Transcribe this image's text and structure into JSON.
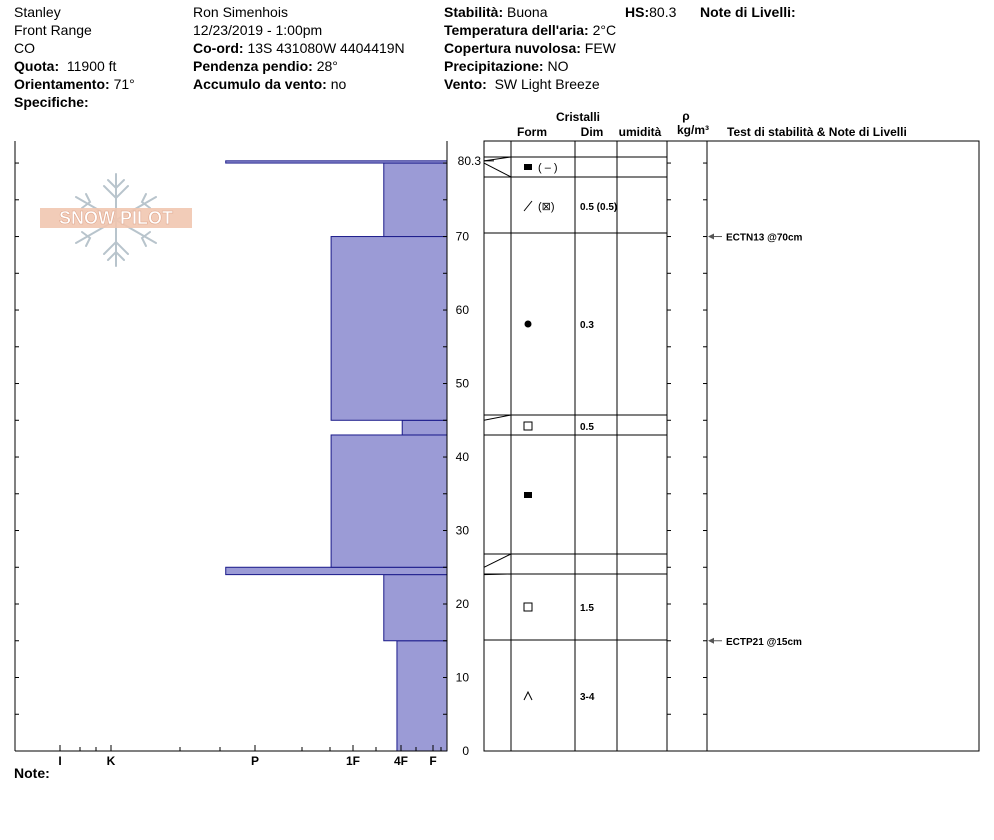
{
  "header": {
    "col1": {
      "location": "Stanley",
      "range": "Front Range",
      "state": "CO",
      "elevation_label": "Quota:",
      "elevation_value": "11900 ft",
      "aspect_label": "Orientamento:",
      "aspect_value": "71°",
      "specifics_label": "Specifiche:"
    },
    "col2": {
      "observer": "Ron Simenhois",
      "datetime": "12/23/2019 - 1:00pm",
      "coord_label": "Co-ord:",
      "coord_value": "13S 431080W 4404419N",
      "slope_label": "Pendenza pendio:",
      "slope_value": "28°",
      "wind_loading_label": "Accumulo da vento:",
      "wind_loading_value": "no"
    },
    "col3": {
      "stability_label": "Stabilità:",
      "stability_value": "Buona",
      "air_temp_label": "Temperatura dell'aria:",
      "air_temp_value": "2°C",
      "cloud_label": "Copertura nuvolosa:",
      "cloud_value": "FEW",
      "precip_label": "Precipitazione:",
      "precip_value": "NO",
      "wind_label": "Vento:",
      "wind_value": "SW Light Breeze"
    },
    "hs_label": "HS:",
    "hs_value": "80.3",
    "layer_notes_label": "Note di Livelli:"
  },
  "logo_text": "SNOW PILOT",
  "notes_label": "Note:",
  "table_headers": {
    "crystals": "Cristalli",
    "form": "Form",
    "size": "Dim",
    "moisture": "umidità",
    "density_symbol": "ρ",
    "density_unit": "kg/m³",
    "tests": "Test di stabilità & Note di Livelli"
  },
  "chart_data": {
    "type": "bar",
    "y_label_top": "80.3",
    "ylim": [
      0,
      83
    ],
    "yticks": [
      0,
      10,
      20,
      30,
      40,
      50,
      60,
      70
    ],
    "hardness_scale": [
      "I",
      "K",
      "P",
      "1F",
      "4F",
      "F"
    ],
    "hardness_tick_values": [
      1,
      2,
      4,
      6,
      7,
      8
    ],
    "layers": [
      {
        "bottom": 0,
        "top": 15,
        "hardness": 7.75
      },
      {
        "bottom": 15,
        "top": 24,
        "hardness": 7
      },
      {
        "bottom": 24,
        "top": 25,
        "hardness": 4
      },
      {
        "bottom": 25,
        "top": 43,
        "hardness": 6
      },
      {
        "bottom": 43,
        "top": 45,
        "hardness": 8
      },
      {
        "bottom": 45,
        "top": 70,
        "hardness": 6
      },
      {
        "bottom": 70,
        "top": 80,
        "hardness": 7
      },
      {
        "bottom": 80,
        "top": 80.3,
        "hardness": 4
      }
    ],
    "crystal_layers": [
      {
        "bottom": 0,
        "top": 15,
        "form": "depth-hoar-icon",
        "form_text": "",
        "size": "3-4"
      },
      {
        "bottom": 15,
        "top": 24,
        "form": "faceted-crystal-icon",
        "form_text": "",
        "size": "1.5"
      },
      {
        "bottom": 24,
        "top": 25,
        "form": "",
        "form_text": "",
        "size": ""
      },
      {
        "bottom": 25,
        "top": 43,
        "form": "melt-forms-icon",
        "form_text": "",
        "size": ""
      },
      {
        "bottom": 43,
        "top": 45,
        "form": "faceted-crystal-icon",
        "form_text": "",
        "size": "0.5"
      },
      {
        "bottom": 45,
        "top": 70,
        "form": "rounded-grain-icon",
        "form_text": "",
        "size": "0.3"
      },
      {
        "bottom": 70,
        "top": 77.5,
        "form": "decomposed-fragment-icon",
        "form_text": "(⊠)",
        "size": "0.5 (0.5)"
      },
      {
        "bottom": 77.5,
        "top": 80,
        "form": "melt-forms-icon",
        "form_text": "( – )",
        "size": ""
      },
      {
        "bottom": 80,
        "top": 80.3,
        "form": "",
        "form_text": "",
        "size": ""
      }
    ],
    "tests": [
      {
        "depth": 70,
        "text": "ECTN13 @70cm"
      },
      {
        "depth": 15,
        "text": "ECTP21 @15cm"
      }
    ],
    "colors": {
      "fill": "#9b9bd6",
      "stroke": "#1a1a8a"
    }
  }
}
